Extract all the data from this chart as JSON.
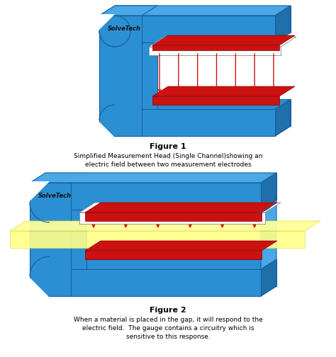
{
  "fig_width": 4.74,
  "fig_height": 5.04,
  "dpi": 100,
  "background_color": "#ffffff",
  "blue_front": "#2B8FD4",
  "blue_top": "#4AA8E8",
  "blue_right": "#1E6FAA",
  "blue_edge": "#1A5E9E",
  "red_color": "#CC1111",
  "yellow_color": "#FFFF99",
  "white_color": "#FFFFFF",
  "black_color": "#000000",
  "logo_text": "SolveTech",
  "fig1_title": "Figure 1",
  "fig1_caption_line1": "Simplified Measurement Head (Single Channel)showing an",
  "fig1_caption_line2": "electric field between two measurement electrodes",
  "fig2_title": "Figure 2",
  "fig2_caption_line1": "When a material is placed in the gap, it will respond to the",
  "fig2_caption_line2": "electric field.  The gauge contains a circuitry which is",
  "fig2_caption_line3": "sensitive to this response."
}
